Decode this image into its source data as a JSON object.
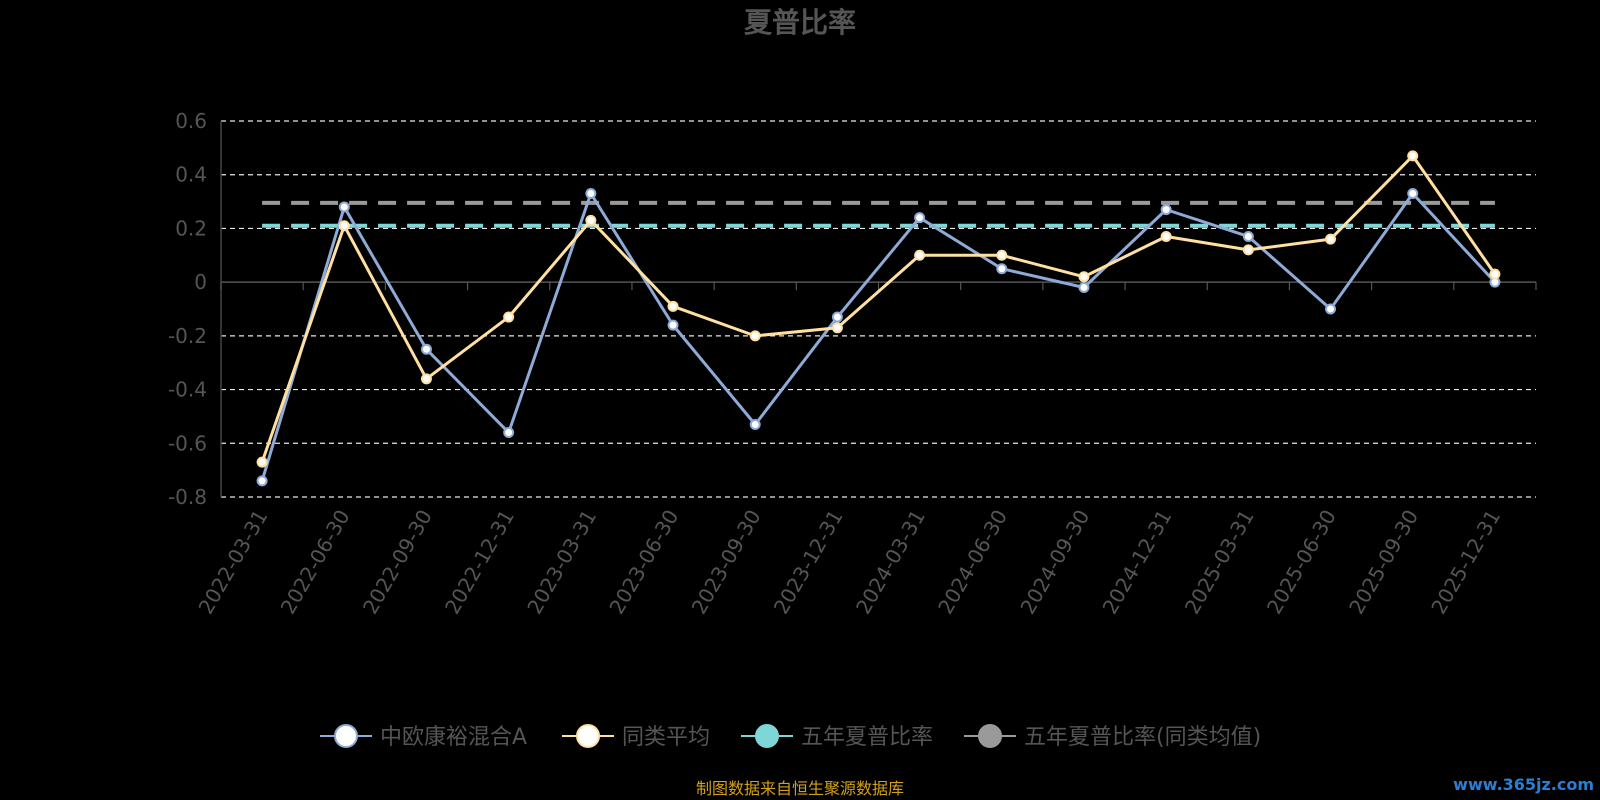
{
  "chart_data": {
    "type": "line",
    "title": "夏普比率",
    "ylim": [
      -0.8,
      0.6
    ],
    "yticks": [
      "0.6",
      "0.4",
      "0.2",
      "0",
      "-0.2",
      "-0.4",
      "-0.6",
      "-0.8"
    ],
    "ytick_values": [
      0.6,
      0.4,
      0.2,
      0,
      -0.2,
      -0.4,
      -0.6,
      -0.8
    ],
    "grid": true,
    "legend_position": "bottom",
    "categories": [
      "2022-03-31",
      "2022-06-30",
      "2022-09-30",
      "2022-12-31",
      "2023-03-31",
      "2023-06-30",
      "2023-09-30",
      "2023-12-31",
      "2024-03-31",
      "2024-06-30",
      "2024-09-30",
      "2024-12-31",
      "2025-03-31",
      "2025-06-30",
      "2025-09-30",
      "2025-12-31"
    ],
    "series": [
      {
        "name": "中欧康裕混合A",
        "color": "#8eaad6",
        "style": "line",
        "values": [
          -0.74,
          0.28,
          -0.25,
          -0.56,
          0.33,
          -0.16,
          -0.53,
          -0.13,
          0.24,
          0.05,
          -0.02,
          0.27,
          0.17,
          -0.1,
          0.33,
          0.0
        ]
      },
      {
        "name": "同类平均",
        "color": "#ffe0a0",
        "style": "line",
        "values": [
          -0.67,
          0.21,
          -0.36,
          -0.13,
          0.23,
          -0.09,
          -0.2,
          -0.17,
          0.1,
          0.1,
          0.02,
          0.17,
          0.12,
          0.16,
          0.47,
          0.03
        ]
      },
      {
        "name": "五年夏普比率",
        "color": "#7ed6d6",
        "style": "dashed",
        "value": 0.21
      },
      {
        "name": "五年夏普比率(同类均值)",
        "color": "#9a9a9a",
        "style": "dashed",
        "value": 0.295
      }
    ]
  },
  "legend": {
    "items": [
      {
        "label": "中欧康裕混合A",
        "color": "#8eaad6",
        "fill": "#ffffff"
      },
      {
        "label": "同类平均",
        "color": "#ffe0a0",
        "fill": "#ffffff"
      },
      {
        "label": "五年夏普比率",
        "color": "#7ed6d6",
        "fill": "#7ed6d6"
      },
      {
        "label": "五年夏普比率(同类均值)",
        "color": "#9a9a9a",
        "fill": "#9a9a9a"
      }
    ]
  },
  "source_text": "制图数据来自恒生聚源数据库",
  "watermark": "www.365jz.com"
}
